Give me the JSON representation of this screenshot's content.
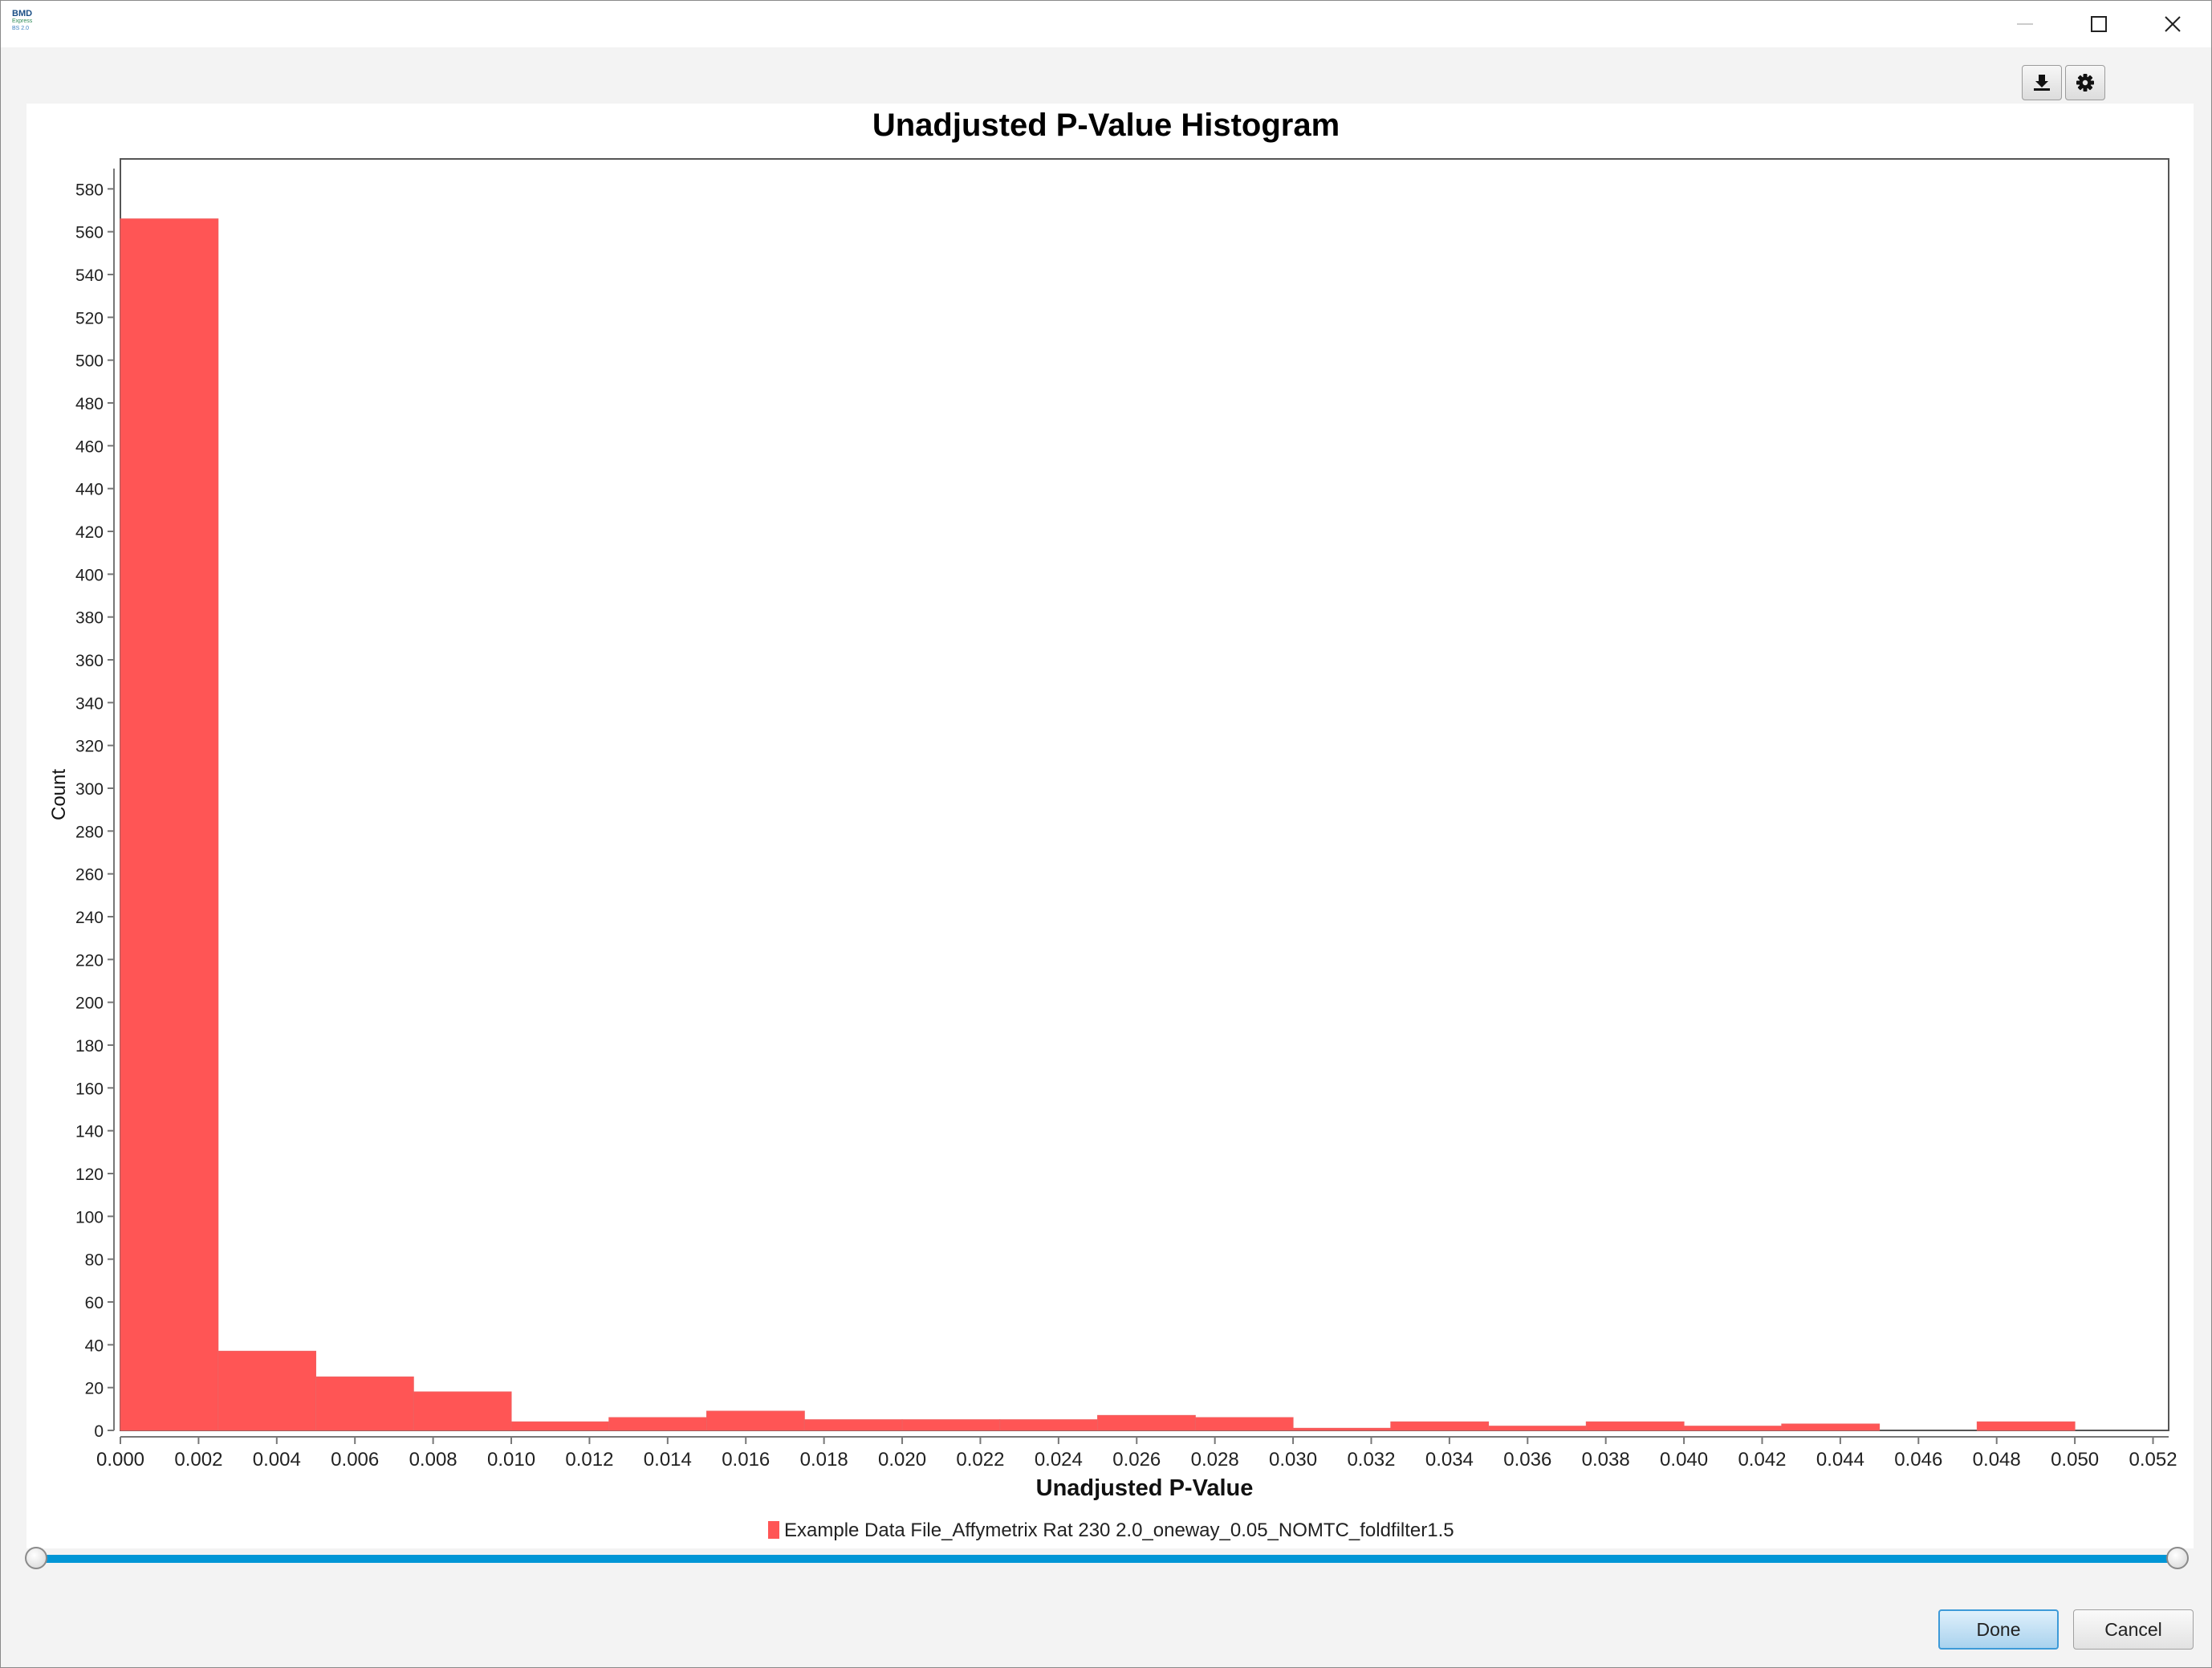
{
  "window": {
    "logo_text": [
      "BMD",
      "Express",
      "BS 2.0"
    ],
    "controls": {
      "minimize": "minimize",
      "maximize": "maximize",
      "close": "close"
    }
  },
  "toolbar": {
    "buttons": [
      "download-icon",
      "gear-icon"
    ]
  },
  "chart_data": {
    "type": "bar",
    "title": "Unadjusted P-Value Histogram",
    "xlabel": "Unadjusted P-Value",
    "ylabel": "Count",
    "bin_width": 0.0025,
    "bins": [
      {
        "x0": 0.0,
        "x1": 0.0025,
        "count": 566
      },
      {
        "x0": 0.0025,
        "x1": 0.005,
        "count": 37
      },
      {
        "x0": 0.005,
        "x1": 0.0075,
        "count": 25
      },
      {
        "x0": 0.0075,
        "x1": 0.01,
        "count": 18
      },
      {
        "x0": 0.01,
        "x1": 0.0125,
        "count": 4
      },
      {
        "x0": 0.0125,
        "x1": 0.015,
        "count": 6
      },
      {
        "x0": 0.015,
        "x1": 0.0175,
        "count": 9
      },
      {
        "x0": 0.0175,
        "x1": 0.02,
        "count": 5
      },
      {
        "x0": 0.02,
        "x1": 0.0225,
        "count": 5
      },
      {
        "x0": 0.0225,
        "x1": 0.025,
        "count": 5
      },
      {
        "x0": 0.025,
        "x1": 0.0275,
        "count": 7
      },
      {
        "x0": 0.0275,
        "x1": 0.03,
        "count": 6
      },
      {
        "x0": 0.03,
        "x1": 0.0325,
        "count": 1
      },
      {
        "x0": 0.0325,
        "x1": 0.035,
        "count": 4
      },
      {
        "x0": 0.035,
        "x1": 0.0375,
        "count": 2
      },
      {
        "x0": 0.0375,
        "x1": 0.04,
        "count": 4
      },
      {
        "x0": 0.04,
        "x1": 0.0425,
        "count": 2
      },
      {
        "x0": 0.0425,
        "x1": 0.045,
        "count": 3
      },
      {
        "x0": 0.045,
        "x1": 0.0475,
        "count": 0
      },
      {
        "x0": 0.0475,
        "x1": 0.05,
        "count": 4
      }
    ],
    "xlim": [
      0.0,
      0.0524
    ],
    "ylim": [
      0,
      594
    ],
    "xticks": [
      "0.000",
      "0.002",
      "0.004",
      "0.006",
      "0.008",
      "0.010",
      "0.012",
      "0.014",
      "0.016",
      "0.018",
      "0.020",
      "0.022",
      "0.024",
      "0.026",
      "0.028",
      "0.030",
      "0.032",
      "0.034",
      "0.036",
      "0.038",
      "0.040",
      "0.042",
      "0.044",
      "0.046",
      "0.048",
      "0.050",
      "0.052"
    ],
    "yticks": [
      0,
      20,
      40,
      60,
      80,
      100,
      120,
      140,
      160,
      180,
      200,
      220,
      240,
      260,
      280,
      300,
      320,
      340,
      360,
      380,
      400,
      420,
      440,
      460,
      480,
      500,
      520,
      540,
      560,
      580
    ],
    "series": [
      {
        "name": "Example Data File_Affymetrix Rat 230 2.0_oneway_0.05_NOMTC_foldfilter1.5",
        "color": "#ff5555"
      }
    ],
    "legend_position": "bottom-center",
    "grid": false
  },
  "dialog": {
    "done_label": "Done",
    "cancel_label": "Cancel"
  }
}
